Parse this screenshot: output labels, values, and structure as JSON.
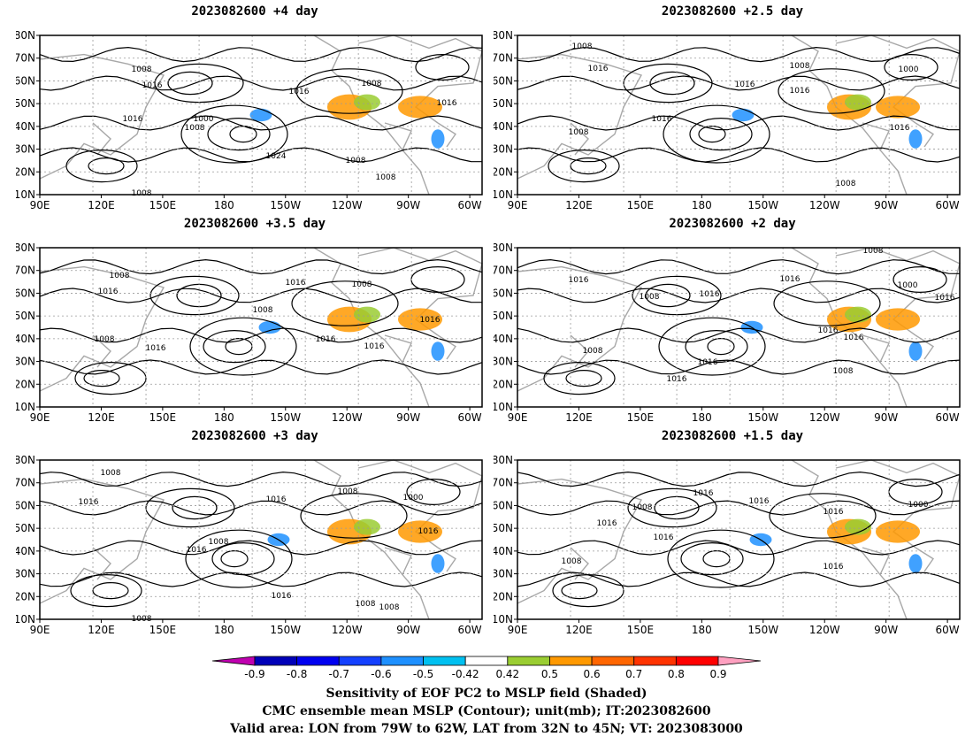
{
  "panels": [
    {
      "title": "2023082600 +4 day",
      "contour_labels": [
        {
          "text": "1008",
          "x": 160,
          "y": 78
        },
        {
          "text": "1016",
          "x": 172,
          "y": 96
        },
        {
          "text": "1016",
          "x": 338,
          "y": 103
        },
        {
          "text": "1008",
          "x": 420,
          "y": 94
        },
        {
          "text": "1016",
          "x": 505,
          "y": 116
        },
        {
          "text": "1016",
          "x": 150,
          "y": 134
        },
        {
          "text": "1000",
          "x": 230,
          "y": 134
        },
        {
          "text": "1008",
          "x": 220,
          "y": 144
        },
        {
          "text": "1024",
          "x": 312,
          "y": 176
        },
        {
          "text": "1008",
          "x": 402,
          "y": 181
        },
        {
          "text": "1008",
          "x": 436,
          "y": 200
        },
        {
          "text": "1008",
          "x": 160,
          "y": 218
        }
      ]
    },
    {
      "title": "2023082600 +2.5 day",
      "contour_labels": [
        {
          "text": "1008",
          "x": 658,
          "y": 52
        },
        {
          "text": "1016",
          "x": 676,
          "y": 77
        },
        {
          "text": "1008",
          "x": 904,
          "y": 74
        },
        {
          "text": "1000",
          "x": 1027,
          "y": 78
        },
        {
          "text": "1016",
          "x": 842,
          "y": 95
        },
        {
          "text": "1016",
          "x": 904,
          "y": 102
        },
        {
          "text": "1016",
          "x": 748,
          "y": 134
        },
        {
          "text": "1008",
          "x": 654,
          "y": 149
        },
        {
          "text": "1016",
          "x": 1017,
          "y": 144
        },
        {
          "text": "1008",
          "x": 956,
          "y": 207
        }
      ]
    },
    {
      "title": "2023082600 +3.5 day",
      "contour_labels": [
        {
          "text": "1008",
          "x": 135,
          "y": 311
        },
        {
          "text": "1016",
          "x": 122,
          "y": 329
        },
        {
          "text": "1016",
          "x": 334,
          "y": 319
        },
        {
          "text": "1008",
          "x": 409,
          "y": 321
        },
        {
          "text": "1008",
          "x": 297,
          "y": 350
        },
        {
          "text": "1016",
          "x": 486,
          "y": 361
        },
        {
          "text": "1008",
          "x": 118,
          "y": 383
        },
        {
          "text": "1016",
          "x": 176,
          "y": 393
        },
        {
          "text": "1016",
          "x": 368,
          "y": 383
        },
        {
          "text": "1016",
          "x": 423,
          "y": 391
        }
      ]
    },
    {
      "title": "2023082600 +2 day",
      "contour_labels": [
        {
          "text": "1008",
          "x": 987,
          "y": 283
        },
        {
          "text": "1016",
          "x": 654,
          "y": 316
        },
        {
          "text": "1016",
          "x": 893,
          "y": 315
        },
        {
          "text": "1000",
          "x": 1026,
          "y": 322
        },
        {
          "text": "1008",
          "x": 734,
          "y": 335
        },
        {
          "text": "1016",
          "x": 802,
          "y": 332
        },
        {
          "text": "1016",
          "x": 1068,
          "y": 336
        },
        {
          "text": "1016",
          "x": 936,
          "y": 373
        },
        {
          "text": "1016",
          "x": 965,
          "y": 381
        },
        {
          "text": "1008",
          "x": 670,
          "y": 396
        },
        {
          "text": "1016",
          "x": 800,
          "y": 409
        },
        {
          "text": "1016",
          "x": 765,
          "y": 428
        },
        {
          "text": "1008",
          "x": 953,
          "y": 419
        }
      ]
    },
    {
      "title": "2023082600 +3 day",
      "contour_labels": [
        {
          "text": "1008",
          "x": 125,
          "y": 534
        },
        {
          "text": "1016",
          "x": 100,
          "y": 567
        },
        {
          "text": "1008",
          "x": 393,
          "y": 555
        },
        {
          "text": "1016",
          "x": 312,
          "y": 564
        },
        {
          "text": "1000",
          "x": 467,
          "y": 562
        },
        {
          "text": "1008",
          "x": 247,
          "y": 612
        },
        {
          "text": "1016",
          "x": 222,
          "y": 621
        },
        {
          "text": "1016",
          "x": 484,
          "y": 600
        },
        {
          "text": "1016",
          "x": 318,
          "y": 673
        },
        {
          "text": "1008",
          "x": 413,
          "y": 682
        },
        {
          "text": "1008",
          "x": 440,
          "y": 686
        },
        {
          "text": "1008",
          "x": 160,
          "y": 699
        }
      ]
    },
    {
      "title": "2023082600 +1.5 day",
      "contour_labels": [
        {
          "text": "1016",
          "x": 795,
          "y": 557
        },
        {
          "text": "1016",
          "x": 858,
          "y": 566
        },
        {
          "text": "1008",
          "x": 726,
          "y": 573
        },
        {
          "text": "1016",
          "x": 942,
          "y": 578
        },
        {
          "text": "1000",
          "x": 1038,
          "y": 570
        },
        {
          "text": "1016",
          "x": 686,
          "y": 591
        },
        {
          "text": "1016",
          "x": 750,
          "y": 607
        },
        {
          "text": "1008",
          "x": 646,
          "y": 634
        },
        {
          "text": "1016",
          "x": 942,
          "y": 640
        }
      ]
    }
  ],
  "axes": {
    "x_ticks": [
      "90E",
      "120E",
      "150E",
      "180",
      "150W",
      "120W",
      "90W",
      "60W"
    ],
    "y_ticks": [
      "80N",
      "70N",
      "60N",
      "50N",
      "40N",
      "30N",
      "20N",
      "10N"
    ]
  },
  "colorbar": {
    "labels": [
      "-0.9",
      "-0.8",
      "-0.7",
      "-0.6",
      "-0.5",
      "-0.42",
      "0.42",
      "0.5",
      "0.6",
      "0.7",
      "0.8",
      "0.9"
    ],
    "colors": [
      "#c000b0",
      "#0000b8",
      "#0000f0",
      "#1440ff",
      "#1e90ff",
      "#00c0f0",
      "#ffffff",
      "#9acd32",
      "#ff9900",
      "#ff6600",
      "#ff3300",
      "#ff0000",
      "#ffa0c0"
    ]
  },
  "colors": {
    "land": "#a8a8a8",
    "contour": "#000000",
    "grid": "#999999",
    "negative": "#1e90ff",
    "positive": "#ff9900",
    "green": "#9acd32"
  },
  "footer": {
    "line1": "Sensitivity of EOF PC2 to MSLP field (Shaded)",
    "line2": "CMC ensemble mean MSLP (Contour); unit(mb); IT:2023082600",
    "line3": "Valid area: LON from 79W to 62W, LAT from 32N to 45N; VT: 2023083000"
  }
}
